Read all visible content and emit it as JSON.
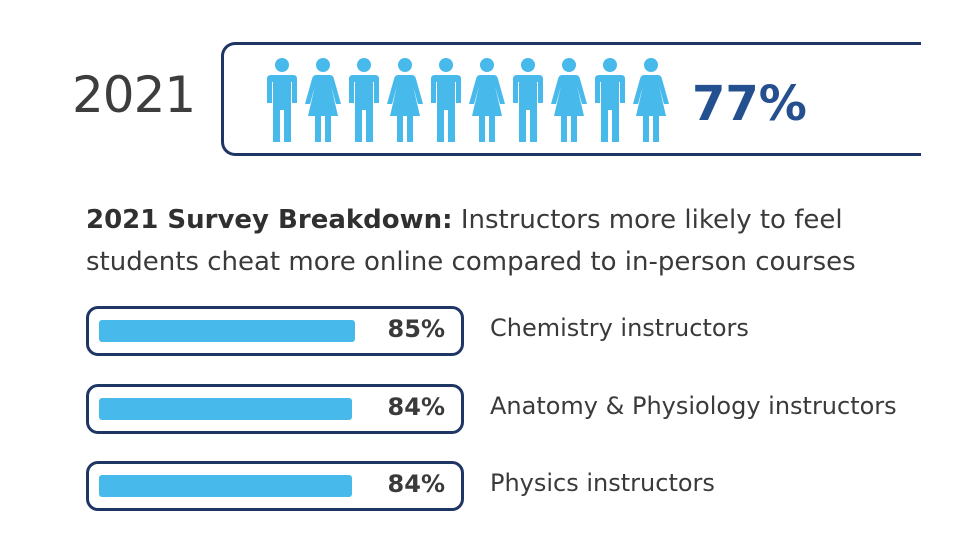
{
  "header": {
    "year": "2021",
    "headline_percent": "77%"
  },
  "icons": [
    "male-person-icon",
    "female-person-icon",
    "male-person-icon",
    "female-person-icon",
    "male-person-icon",
    "female-person-icon",
    "male-person-icon",
    "female-person-icon",
    "male-person-icon",
    "female-person-icon"
  ],
  "subtitle": {
    "bold": "2021 Survey Breakdown:",
    "text": " Instructors more likely to feel students cheat more online compared to in-person courses"
  },
  "colors": {
    "accent": "#47b9ea",
    "border": "#1f3564",
    "headline": "#24508f",
    "text": "#3a3a3a"
  },
  "chart_data": {
    "type": "bar",
    "title": "2021 Survey Breakdown: Instructors more likely to feel students cheat more online compared to in-person courses",
    "categories": [
      "Chemistry instructors",
      "Anatomy & Physiology instructors",
      "Physics instructors"
    ],
    "values": [
      85,
      84,
      84
    ],
    "value_labels": [
      "85%",
      "84%",
      "84%"
    ],
    "ylim": [
      0,
      100
    ],
    "headline": {
      "year": "2021",
      "value": 77,
      "label": "77%"
    }
  }
}
